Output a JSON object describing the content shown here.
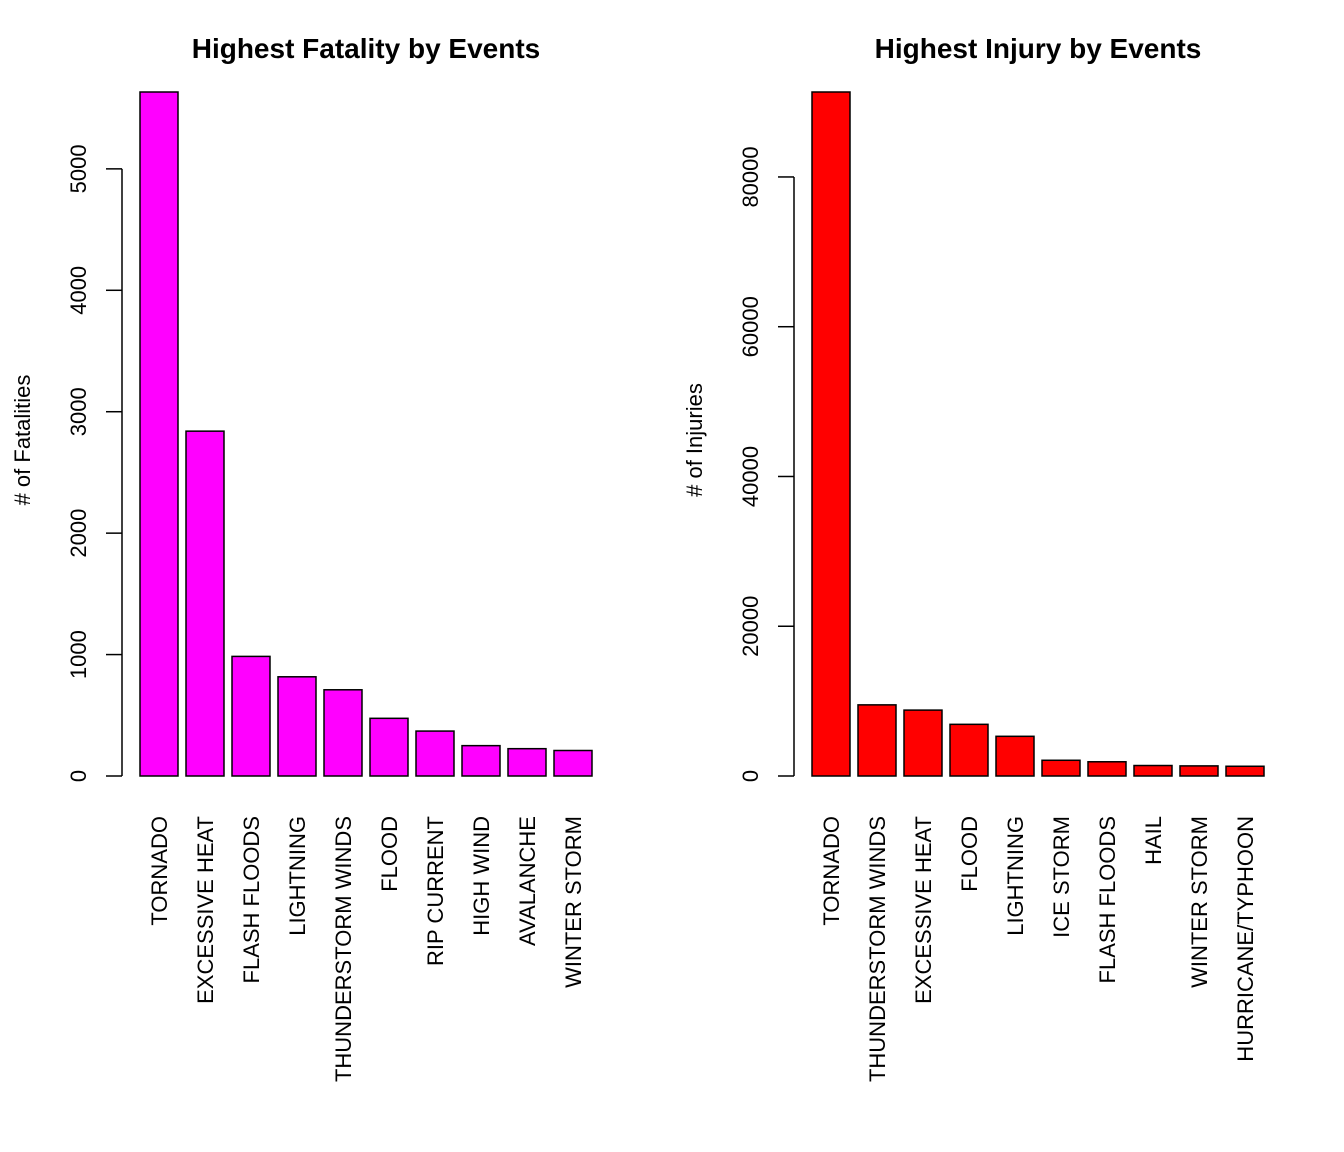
{
  "chart_data": [
    {
      "type": "bar",
      "title": "Highest Fatality by Events",
      "xlabel": "",
      "ylabel": "# of Fatalities",
      "ylim": [
        0,
        5633
      ],
      "yticks": [
        0,
        1000,
        2000,
        3000,
        4000,
        5000
      ],
      "fill_color": "#ff00ff",
      "categories": [
        "TORNADO",
        "EXCESSIVE HEAT",
        "FLASH FLOODS",
        "LIGHTNING",
        "THUNDERSTORM WINDS",
        "FLOOD",
        "RIP CURRENT",
        "HIGH WIND",
        "AVALANCHE",
        "WINTER STORM"
      ],
      "values": [
        5633,
        2840,
        985,
        817,
        710,
        475,
        370,
        250,
        225,
        210
      ]
    },
    {
      "type": "bar",
      "title": "Highest Injury by Events",
      "xlabel": "",
      "ylabel": "# of Injuries",
      "ylim": [
        0,
        91346
      ],
      "yticks": [
        0,
        20000,
        40000,
        60000,
        80000
      ],
      "fill_color": "#ff0000",
      "categories": [
        "TORNADO",
        "THUNDERSTORM WINDS",
        "EXCESSIVE HEAT",
        "FLOOD",
        "LIGHTNING",
        "ICE STORM",
        "FLASH FLOODS",
        "HAIL",
        "WINTER STORM",
        "HURRICANE/TYPHOON"
      ],
      "values": [
        91346,
        9500,
        8800,
        6900,
        5300,
        2100,
        1900,
        1400,
        1350,
        1300
      ]
    }
  ]
}
